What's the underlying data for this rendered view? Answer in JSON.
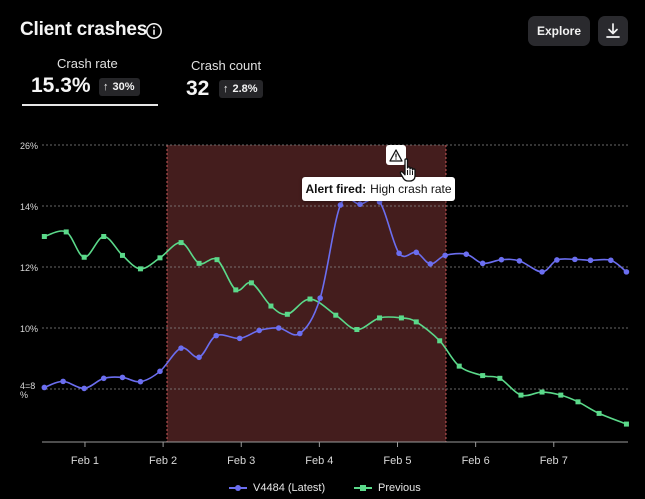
{
  "header": {
    "title": "Client crashes",
    "explore_label": "Explore"
  },
  "metrics": [
    {
      "label": "Crash rate",
      "value": "15.3%",
      "delta": "30%",
      "selected": true
    },
    {
      "label": "Crash count",
      "value": "32",
      "delta": "2.8%",
      "selected": false
    }
  ],
  "alert": {
    "label": "Alert fired:",
    "text": "High crash rate",
    "icon": "warning-icon"
  },
  "colors": {
    "latest": "#6b6ef0",
    "previous": "#5bd98a",
    "alert_region": "#4a1f1f",
    "alert_border": "#c85a5a"
  },
  "chart_data": {
    "type": "line",
    "title": "",
    "xlabel": "",
    "ylabel": "",
    "y_ticks": [
      "26%",
      "14%",
      "12%",
      "10%",
      "4=8\n%"
    ],
    "x_ticks": [
      "Feb 1",
      "Feb 2",
      "Feb 3",
      "Feb 4",
      "Feb 5",
      "Feb 6",
      "Feb 7"
    ],
    "x_range": [
      0.45,
      7.95
    ],
    "alert_window": [
      2.05,
      5.62
    ],
    "grid": true,
    "legend_position": "bottom",
    "series": [
      {
        "name": "V4484 (Latest)",
        "color": "#6b6ef0",
        "marker": "circle",
        "points": [
          [
            0.48,
            8.05
          ],
          [
            0.72,
            8.25
          ],
          [
            0.99,
            8.02
          ],
          [
            1.24,
            8.35
          ],
          [
            1.48,
            8.38
          ],
          [
            1.71,
            8.24
          ],
          [
            1.96,
            8.58
          ],
          [
            2.23,
            9.34
          ],
          [
            2.46,
            9.04
          ],
          [
            2.68,
            9.75
          ],
          [
            2.98,
            9.66
          ],
          [
            3.23,
            9.92
          ],
          [
            3.48,
            10.0
          ],
          [
            3.75,
            9.82
          ],
          [
            4.01,
            10.98
          ],
          [
            4.27,
            14.2
          ],
          [
            4.52,
            14.35
          ],
          [
            4.77,
            14.8
          ],
          [
            5.02,
            12.45
          ],
          [
            5.24,
            12.48
          ],
          [
            5.42,
            12.1
          ],
          [
            5.61,
            12.38
          ],
          [
            5.88,
            12.42
          ],
          [
            6.09,
            12.12
          ],
          [
            6.33,
            12.24
          ],
          [
            6.56,
            12.2
          ],
          [
            6.85,
            11.84
          ],
          [
            7.04,
            12.23
          ],
          [
            7.27,
            12.25
          ],
          [
            7.47,
            12.22
          ],
          [
            7.73,
            12.22
          ],
          [
            7.93,
            11.84
          ]
        ]
      },
      {
        "name": "Previous",
        "color": "#5bd98a",
        "marker": "square",
        "points": [
          [
            0.48,
            13.0
          ],
          [
            0.76,
            13.15
          ],
          [
            0.99,
            12.32
          ],
          [
            1.24,
            13.0
          ],
          [
            1.48,
            12.38
          ],
          [
            1.71,
            11.94
          ],
          [
            1.96,
            12.3
          ],
          [
            2.23,
            12.8
          ],
          [
            2.46,
            12.12
          ],
          [
            2.69,
            12.24
          ],
          [
            2.93,
            11.25
          ],
          [
            3.13,
            11.48
          ],
          [
            3.38,
            10.72
          ],
          [
            3.59,
            10.45
          ],
          [
            3.88,
            10.95
          ],
          [
            4.21,
            10.42
          ],
          [
            4.48,
            9.95
          ],
          [
            4.77,
            10.33
          ],
          [
            5.05,
            10.33
          ],
          [
            5.24,
            10.2
          ],
          [
            5.54,
            9.58
          ],
          [
            5.79,
            8.75
          ],
          [
            6.09,
            8.44
          ],
          [
            6.31,
            8.35
          ],
          [
            6.58,
            7.8
          ],
          [
            6.85,
            7.9
          ],
          [
            7.09,
            7.8
          ],
          [
            7.31,
            7.58
          ],
          [
            7.58,
            7.2
          ],
          [
            7.93,
            6.85
          ]
        ]
      }
    ]
  }
}
